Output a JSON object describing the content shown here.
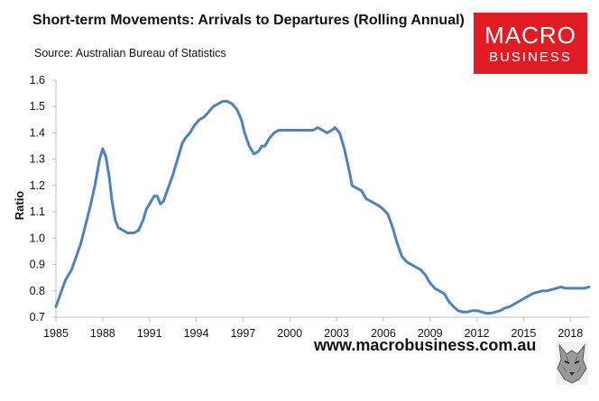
{
  "header": {
    "title": "Short-term Movements: Arrivals to Departures (Rolling Annual)",
    "source": "Source: Australian Bureau of Statistics"
  },
  "logo": {
    "line1": "MACRO",
    "line2": "BUSINESS"
  },
  "footer": {
    "url": "www.macrobusiness.com.au"
  },
  "colors": {
    "line": "#4f81bd",
    "logo_bg": "#e01b23",
    "axis": "#bfbfbf"
  },
  "chart_data": {
    "type": "line",
    "title": "Short-term Movements: Arrivals to Departures (Rolling Annual)",
    "xlabel": "",
    "ylabel": "Ratio",
    "xlim": [
      1985,
      2019.2
    ],
    "ylim": [
      0.7,
      1.6
    ],
    "x_ticks": [
      1985,
      1988,
      1991,
      1994,
      1997,
      2000,
      2003,
      2006,
      2009,
      2012,
      2015,
      2018
    ],
    "y_ticks": [
      0.7,
      0.8,
      0.9,
      1.0,
      1.1,
      1.2,
      1.3,
      1.4,
      1.5,
      1.6
    ],
    "x_tick_labels": [
      "1985",
      "1988",
      "1991",
      "1994",
      "1997",
      "2000",
      "2003",
      "2006",
      "2009",
      "2012",
      "2015",
      "2018"
    ],
    "y_tick_labels": [
      "0.7",
      "0.8",
      "0.9",
      "1.0",
      "1.1",
      "1.2",
      "1.3",
      "1.4",
      "1.5",
      "1.6"
    ],
    "grid": false,
    "legend": "none",
    "series": [
      {
        "name": "Arrivals to Departures ratio",
        "x": [
          1985.0,
          1985.3,
          1985.6,
          1986.0,
          1986.3,
          1986.6,
          1986.9,
          1987.2,
          1987.5,
          1987.8,
          1988.0,
          1988.2,
          1988.4,
          1988.6,
          1988.8,
          1989.0,
          1989.3,
          1989.6,
          1990.0,
          1990.3,
          1990.6,
          1990.8,
          1991.0,
          1991.3,
          1991.5,
          1991.7,
          1991.9,
          1992.2,
          1992.5,
          1992.8,
          1993.1,
          1993.3,
          1993.6,
          1993.9,
          1994.2,
          1994.5,
          1994.8,
          1995.1,
          1995.4,
          1995.7,
          1996.0,
          1996.3,
          1996.6,
          1996.9,
          1997.1,
          1997.4,
          1997.7,
          1998.0,
          1998.2,
          1998.4,
          1998.7,
          1999.0,
          1999.3,
          1999.6,
          2000.0,
          2000.3,
          2000.6,
          2000.9,
          2001.2,
          2001.5,
          2001.8,
          2002.1,
          2002.4,
          2002.7,
          2002.9,
          2003.2,
          2003.5,
          2003.8,
          2004.0,
          2004.3,
          2004.6,
          2004.9,
          2005.2,
          2005.5,
          2005.8,
          2006.0,
          2006.3,
          2006.6,
          2006.9,
          2007.2,
          2007.5,
          2007.8,
          2008.1,
          2008.4,
          2008.7,
          2009.0,
          2009.3,
          2009.6,
          2009.9,
          2010.2,
          2010.5,
          2010.8,
          2011.1,
          2011.4,
          2011.7,
          2012.0,
          2012.3,
          2012.6,
          2012.9,
          2013.2,
          2013.5,
          2013.8,
          2014.1,
          2014.4,
          2014.7,
          2015.0,
          2015.3,
          2015.6,
          2015.9,
          2016.2,
          2016.5,
          2016.8,
          2017.1,
          2017.4,
          2017.7,
          2018.0,
          2018.3,
          2018.6,
          2018.9,
          2019.2
        ],
        "values": [
          0.74,
          0.79,
          0.84,
          0.88,
          0.93,
          0.98,
          1.05,
          1.12,
          1.2,
          1.3,
          1.34,
          1.31,
          1.24,
          1.14,
          1.07,
          1.04,
          1.03,
          1.02,
          1.02,
          1.03,
          1.07,
          1.11,
          1.13,
          1.16,
          1.16,
          1.13,
          1.14,
          1.19,
          1.24,
          1.3,
          1.36,
          1.38,
          1.4,
          1.43,
          1.45,
          1.46,
          1.48,
          1.5,
          1.51,
          1.52,
          1.52,
          1.51,
          1.49,
          1.45,
          1.4,
          1.35,
          1.32,
          1.33,
          1.35,
          1.35,
          1.38,
          1.4,
          1.41,
          1.41,
          1.41,
          1.41,
          1.41,
          1.41,
          1.41,
          1.41,
          1.42,
          1.41,
          1.4,
          1.41,
          1.42,
          1.4,
          1.34,
          1.26,
          1.2,
          1.19,
          1.18,
          1.15,
          1.14,
          1.13,
          1.12,
          1.11,
          1.09,
          1.04,
          0.98,
          0.93,
          0.91,
          0.9,
          0.89,
          0.88,
          0.86,
          0.83,
          0.81,
          0.8,
          0.79,
          0.76,
          0.74,
          0.725,
          0.72,
          0.72,
          0.725,
          0.725,
          0.72,
          0.715,
          0.715,
          0.72,
          0.725,
          0.735,
          0.74,
          0.75,
          0.76,
          0.77,
          0.78,
          0.79,
          0.795,
          0.8,
          0.8,
          0.805,
          0.81,
          0.815,
          0.81,
          0.81,
          0.81,
          0.81,
          0.81,
          0.815
        ]
      }
    ]
  }
}
